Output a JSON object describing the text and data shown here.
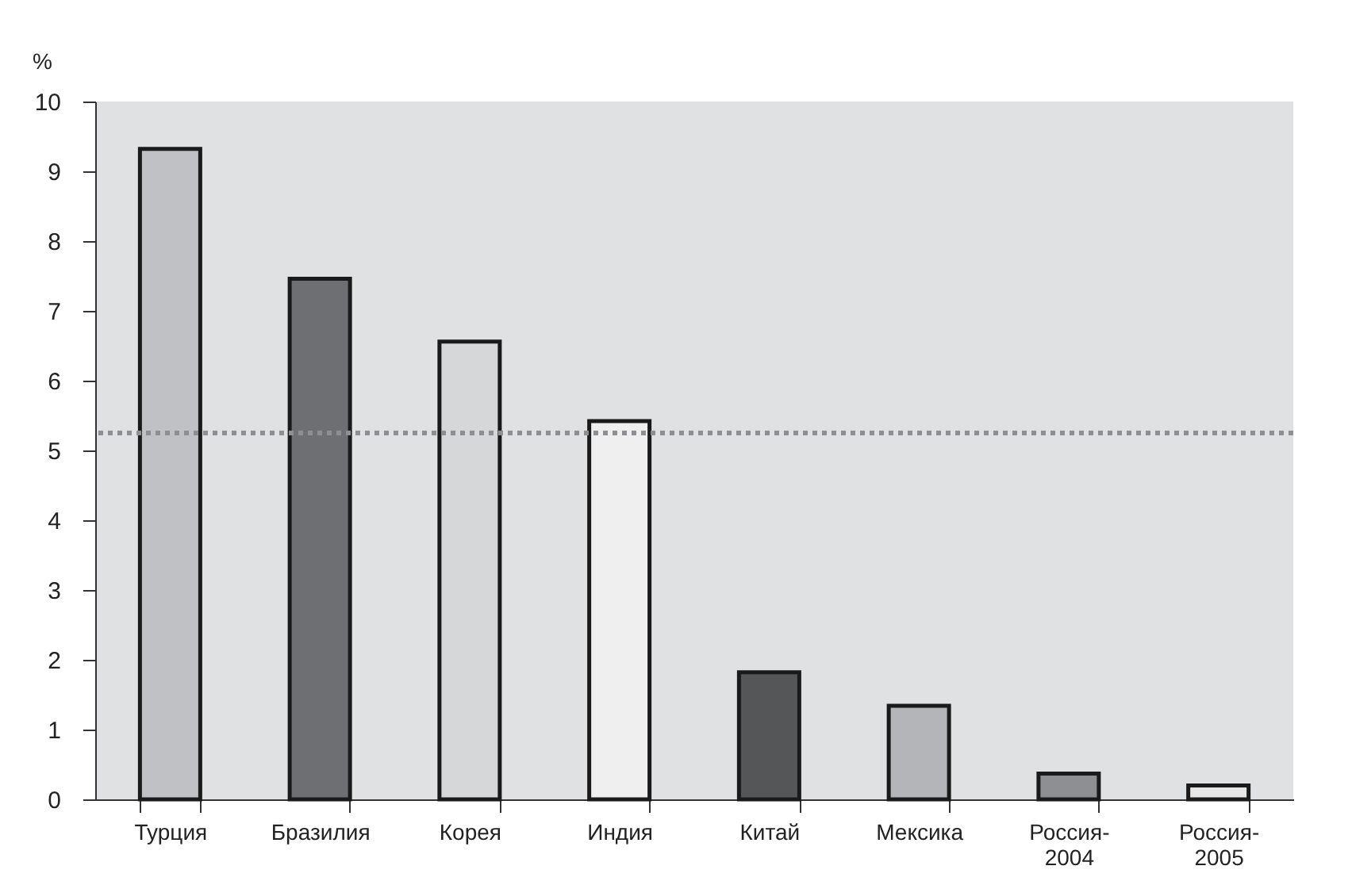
{
  "chart_data": {
    "type": "bar",
    "ylabel": "%",
    "categories": [
      "Турция",
      "Бразилия",
      "Корея",
      "Индия",
      "Китай",
      "Мексика",
      "Россия-2004",
      "Россия-2005"
    ],
    "values": [
      9.32,
      7.46,
      6.56,
      5.42,
      1.82,
      1.34,
      0.37,
      0.2
    ],
    "colors": [
      "#c0c1c4",
      "#6e6f72",
      "#d6d7d9",
      "#efefef",
      "#555658",
      "#b4b5b8",
      "#8e8f92",
      "#e6e6e6"
    ],
    "ylim": [
      0,
      10
    ],
    "yticks": [
      0,
      1,
      2,
      3,
      4,
      5,
      6,
      7,
      8,
      9,
      10
    ],
    "grid": false,
    "ref_lines": [
      {
        "axis": "y",
        "value": 5.25,
        "color": "#8e8f92",
        "line_style": "dotted"
      }
    ]
  }
}
